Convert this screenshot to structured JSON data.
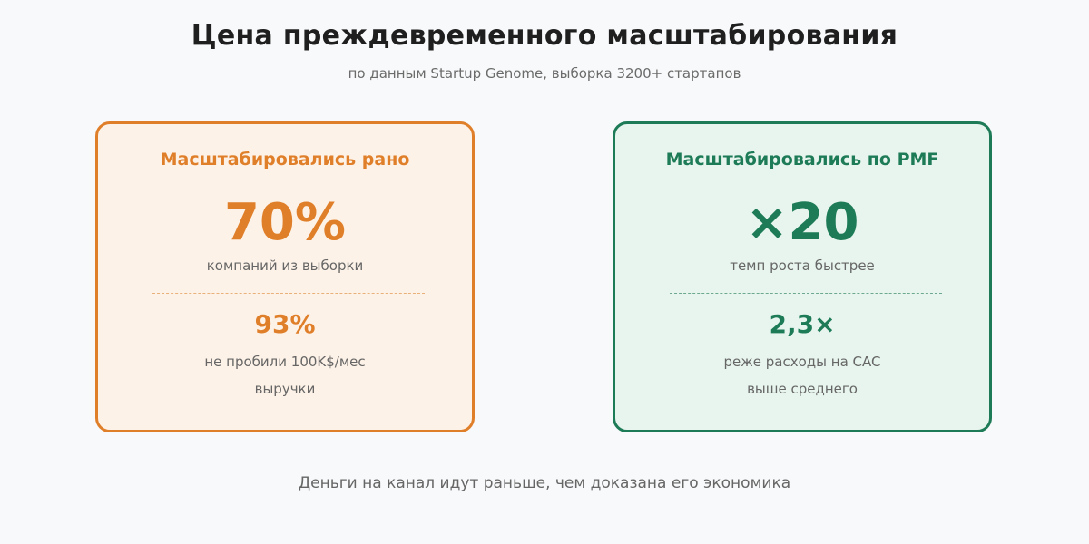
{
  "title": "Цена преждевременного масштабирования",
  "subtitle": "по данным Startup Genome, выборка 3200+ стартапов",
  "cards": [
    {
      "heading": "Масштабировались рано",
      "big_value": "70%",
      "big_caption": "компаний из выборки",
      "mid_value": "93%",
      "mid_caption_line1": "не пробили 100K$/мес",
      "mid_caption_line2": "выручки",
      "accent_color": "#e07f2a"
    },
    {
      "heading": "Масштабировались по PMF",
      "big_value": "×20",
      "big_caption": "темп роста быстрее",
      "mid_value": "2,3×",
      "mid_caption_line1": "реже расходы на CAC",
      "mid_caption_line2": "выше среднего",
      "accent_color": "#1e7b58"
    }
  ],
  "footer": "Деньги на канал идут раньше, чем доказана его экономика"
}
